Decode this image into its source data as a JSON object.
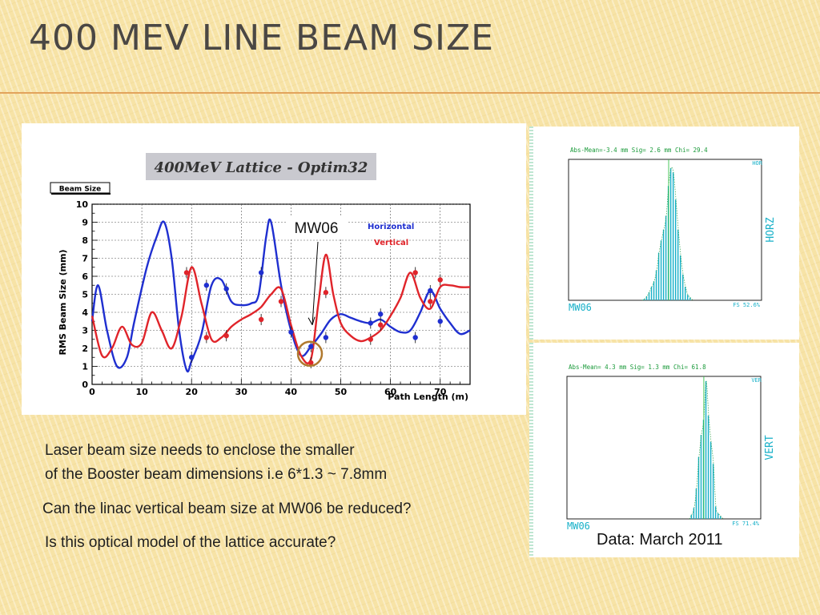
{
  "slide": {
    "title": "400 MeV Line Beam Size",
    "bullets": [
      "Laser beam size needs to enclose the smaller",
      "of the Booster beam dimensions i.e 6*1.3 ~ 7.8mm",
      "Can the linac vertical beam size at MW06 be reduced?",
      "Is this optical model of the lattice accurate?"
    ],
    "caption": "Data: March 2011"
  },
  "colors": {
    "horizontal": "#1f2fd0",
    "vertical": "#e0242a",
    "histogram": "#17b0c8",
    "title": "#4a4744",
    "accent_rule": "#e2a35c"
  },
  "chart_data": [
    {
      "type": "line",
      "title": "400MeV Lattice - Optim32",
      "box_label": "Beam Size",
      "xlabel": "Path Length (m)",
      "ylabel": "RMS Beam Size (mm)",
      "xlim": [
        0,
        76
      ],
      "ylim": [
        0,
        10
      ],
      "xticks": [
        0,
        10,
        20,
        30,
        40,
        50,
        60,
        70
      ],
      "yticks": [
        0,
        1,
        2,
        3,
        4,
        5,
        6,
        7,
        8,
        9,
        10
      ],
      "grid": true,
      "legend_position": "top-right",
      "annotation": "MW06",
      "highlight_x": 43.8,
      "series": [
        {
          "name": "Horizontal",
          "x": [
            0,
            1.2,
            3,
            5,
            7,
            8.5,
            11,
            13,
            14.5,
            16,
            17.5,
            19,
            20,
            22,
            24,
            26,
            28,
            30,
            32,
            33.5,
            35,
            36,
            38,
            40,
            42,
            44,
            46,
            48,
            50,
            52,
            54,
            56,
            58,
            60,
            62,
            64,
            66,
            68,
            70,
            72,
            74,
            76
          ],
          "y": [
            3.5,
            5.5,
            3.0,
            1.0,
            1.5,
            3.5,
            6.5,
            8.2,
            9.0,
            7.0,
            3.0,
            0.8,
            1.3,
            2.8,
            5.5,
            5.8,
            4.6,
            4.4,
            4.5,
            5.0,
            8.2,
            9.0,
            5.5,
            3.0,
            1.6,
            2.1,
            2.8,
            3.6,
            3.9,
            3.7,
            3.5,
            3.4,
            3.6,
            3.2,
            2.9,
            3.0,
            4.0,
            5.2,
            4.2,
            3.4,
            2.8,
            3.0
          ]
        },
        {
          "name": "Vertical",
          "x": [
            0,
            2,
            4,
            6,
            8,
            10,
            12,
            14,
            16,
            18,
            20,
            22,
            24,
            26,
            28,
            30,
            32,
            34,
            36,
            38,
            40,
            42,
            44,
            45.5,
            47,
            48.5,
            50,
            52,
            54,
            56,
            58,
            60,
            62,
            64,
            66,
            68,
            70,
            72,
            74,
            76
          ],
          "y": [
            3.8,
            1.6,
            2.0,
            3.2,
            2.2,
            2.3,
            4.0,
            3.0,
            2.0,
            3.8,
            6.5,
            4.5,
            2.5,
            2.6,
            3.2,
            3.6,
            3.9,
            4.3,
            5.0,
            5.3,
            3.3,
            1.6,
            1.4,
            4.5,
            7.2,
            5.0,
            3.4,
            2.7,
            2.4,
            2.6,
            3.0,
            3.8,
            4.8,
            6.2,
            4.8,
            4.2,
            5.4,
            5.5,
            5.4,
            5.4
          ]
        }
      ],
      "measured": [
        {
          "series": "Horizontal",
          "x": 20,
          "y": 1.5
        },
        {
          "series": "Horizontal",
          "x": 23,
          "y": 5.5
        },
        {
          "series": "Horizontal",
          "x": 27,
          "y": 5.3
        },
        {
          "series": "Horizontal",
          "x": 34,
          "y": 6.2
        },
        {
          "series": "Horizontal",
          "x": 40,
          "y": 2.9
        },
        {
          "series": "Horizontal",
          "x": 44,
          "y": 2.1
        },
        {
          "series": "Horizontal",
          "x": 47,
          "y": 2.6
        },
        {
          "series": "Horizontal",
          "x": 56,
          "y": 3.4
        },
        {
          "series": "Horizontal",
          "x": 58,
          "y": 3.9
        },
        {
          "series": "Horizontal",
          "x": 65,
          "y": 2.6
        },
        {
          "series": "Horizontal",
          "x": 68,
          "y": 5.2
        },
        {
          "series": "Horizontal",
          "x": 70,
          "y": 3.5
        },
        {
          "series": "Vertical",
          "x": 19,
          "y": 6.2
        },
        {
          "series": "Vertical",
          "x": 23,
          "y": 2.6
        },
        {
          "series": "Vertical",
          "x": 27,
          "y": 2.7
        },
        {
          "series": "Vertical",
          "x": 34,
          "y": 3.6
        },
        {
          "series": "Vertical",
          "x": 38,
          "y": 4.6
        },
        {
          "series": "Vertical",
          "x": 44,
          "y": 1.2
        },
        {
          "series": "Vertical",
          "x": 47,
          "y": 5.1
        },
        {
          "series": "Vertical",
          "x": 56,
          "y": 2.5
        },
        {
          "series": "Vertical",
          "x": 58,
          "y": 3.3
        },
        {
          "series": "Vertical",
          "x": 65,
          "y": 6.2
        },
        {
          "series": "Vertical",
          "x": 68,
          "y": 4.6
        },
        {
          "series": "Vertical",
          "x": 70,
          "y": 5.8
        }
      ]
    },
    {
      "type": "bar",
      "stats": "Abs-Mean=-3.4    mm Sig= 2.6    mm Chi= 29.4",
      "corner_tag": "HOR",
      "side_label": "HORZ",
      "monitor": "MW06",
      "footer": "FS    52.6%",
      "values": [
        0,
        0,
        0,
        0,
        0,
        0,
        0,
        0,
        0,
        0,
        0,
        0,
        0,
        0,
        0,
        0,
        0,
        0,
        0,
        0,
        0,
        0,
        0,
        0,
        0,
        0,
        0,
        0,
        0,
        0,
        0,
        1,
        3,
        6,
        10,
        14,
        22,
        35,
        44,
        52,
        62,
        84,
        97,
        94,
        74,
        52,
        33,
        19,
        10,
        4,
        2,
        0,
        0,
        0,
        0,
        0,
        0,
        0,
        0,
        0,
        0,
        0,
        0,
        0,
        0,
        0,
        0,
        0,
        0,
        0,
        0,
        0,
        0,
        0,
        0,
        0,
        0,
        0,
        0,
        0
      ]
    },
    {
      "type": "bar",
      "stats": "Abs-Mean= 4.3    mm Sig= 1.3    mm Chi= 61.8",
      "corner_tag": "VER",
      "side_label": "VERT",
      "monitor": "MW06",
      "footer": "FS    71.4%",
      "values": [
        0,
        0,
        0,
        0,
        0,
        0,
        0,
        0,
        0,
        0,
        0,
        0,
        0,
        0,
        0,
        0,
        0,
        0,
        0,
        0,
        0,
        0,
        0,
        0,
        0,
        0,
        0,
        0,
        0,
        0,
        0,
        0,
        0,
        0,
        0,
        0,
        0,
        0,
        0,
        0,
        0,
        0,
        0,
        0,
        0,
        0,
        0,
        0,
        0,
        0,
        0,
        3,
        8,
        22,
        45,
        61,
        72,
        100,
        75,
        56,
        40,
        9,
        4,
        2,
        0,
        0,
        0,
        0,
        0,
        0,
        0,
        0,
        0,
        0,
        0,
        0,
        0,
        0,
        0,
        0
      ]
    }
  ]
}
